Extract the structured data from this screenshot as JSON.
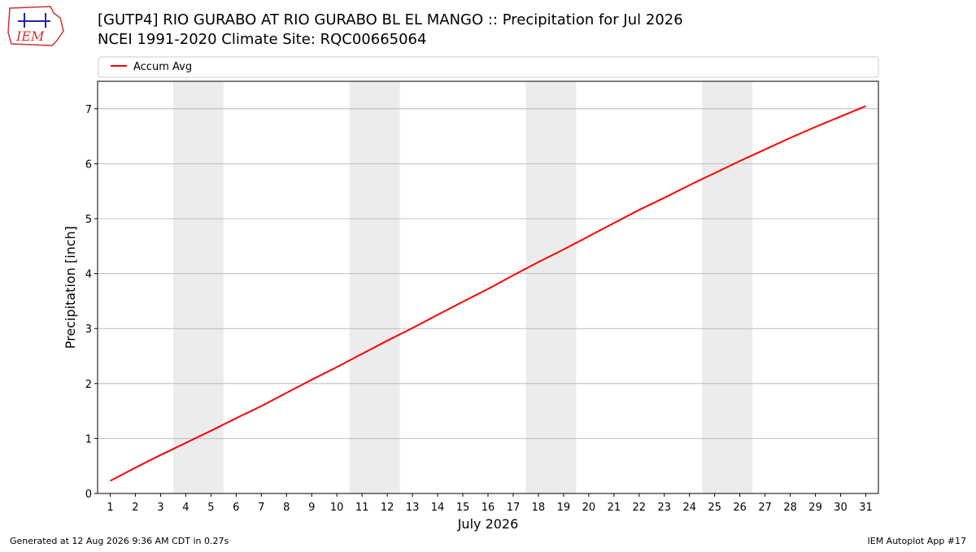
{
  "logo_text": "IEM",
  "footer": {
    "left": "Generated at 12 Aug 2026 9:36 AM CDT in 0.27s",
    "right": "IEM Autoplot App #17"
  },
  "chart_data": {
    "type": "line",
    "title": "[GUTP4] RIO GURABO  AT RIO GURABO BL EL MANGO :: Precipitation for Jul 2026",
    "subtitle": "NCEI 1991-2020 Climate Site: RQC00665064",
    "x_label": "July 2026",
    "y_label": "Precipitation [inch]",
    "x": [
      1,
      2,
      3,
      4,
      5,
      6,
      7,
      8,
      9,
      10,
      11,
      12,
      13,
      14,
      15,
      16,
      17,
      18,
      19,
      20,
      21,
      22,
      23,
      24,
      25,
      26,
      27,
      28,
      29,
      30,
      31
    ],
    "series": [
      {
        "name": "Accum Avg",
        "color": "#ff0000",
        "values": [
          0.23,
          0.47,
          0.7,
          0.92,
          1.14,
          1.37,
          1.59,
          1.83,
          2.07,
          2.3,
          2.54,
          2.78,
          3.01,
          3.25,
          3.49,
          3.72,
          3.97,
          4.21,
          4.44,
          4.68,
          4.92,
          5.16,
          5.38,
          5.61,
          5.83,
          6.05,
          6.26,
          6.47,
          6.67,
          6.86,
          7.05
        ]
      }
    ],
    "shaded_ranges": [
      [
        3.5,
        5.5
      ],
      [
        10.5,
        12.5
      ],
      [
        17.5,
        19.5
      ],
      [
        24.5,
        26.5
      ]
    ],
    "shade_color": "#ececec",
    "xlim": [
      0.5,
      31.5
    ],
    "ylim": [
      0,
      7.5
    ],
    "xticks": [
      1,
      2,
      3,
      4,
      5,
      6,
      7,
      8,
      9,
      10,
      11,
      12,
      13,
      14,
      15,
      16,
      17,
      18,
      19,
      20,
      21,
      22,
      23,
      24,
      25,
      26,
      27,
      28,
      29,
      30,
      31
    ],
    "yticks": [
      0,
      1,
      2,
      3,
      4,
      5,
      6,
      7
    ],
    "grid": "y",
    "legend": "top"
  }
}
